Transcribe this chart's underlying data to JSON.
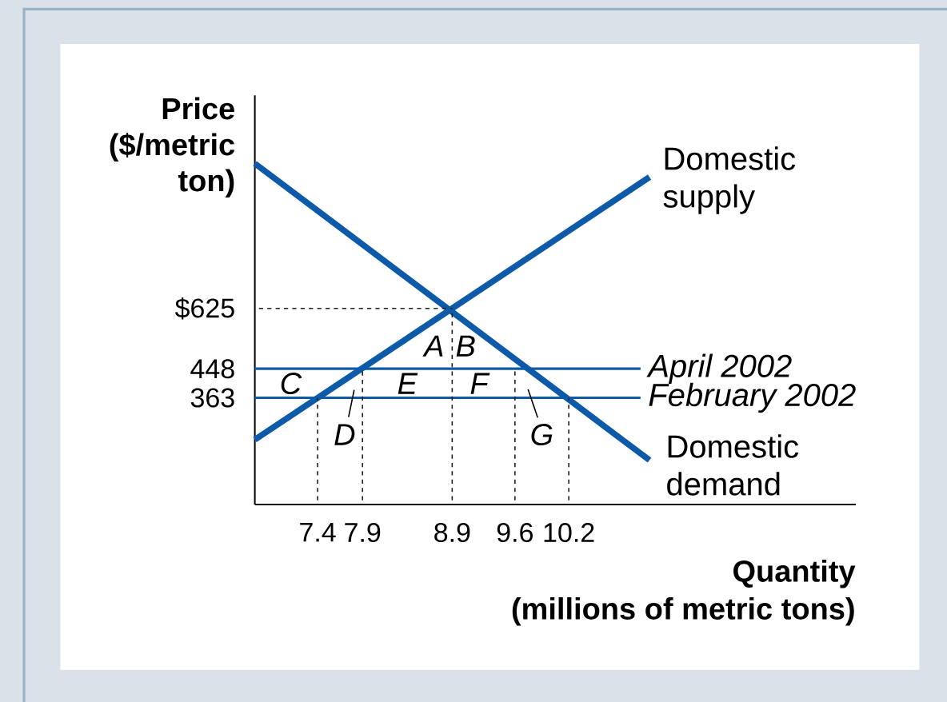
{
  "chart_data": {
    "type": "line",
    "xlabel": "Quantity (millions of metric tons)",
    "ylabel": "Price ($/metric ton)",
    "xlim": [
      6.7,
      13.4
    ],
    "ylim": [
      50,
      1250
    ],
    "xticks": [
      7.4,
      7.9,
      8.9,
      9.6,
      10.2
    ],
    "yticks": [
      363,
      448,
      {
        "value": 625,
        "label": "$625"
      }
    ],
    "series": [
      {
        "name": "Domestic supply",
        "color": "#0d5ba8",
        "x": [
          6.7,
          11.1
        ],
        "values": [
          240,
          1010
        ]
      },
      {
        "name": "Domestic demand",
        "color": "#0d5ba8",
        "x": [
          6.7,
          11.1
        ],
        "values": [
          1050,
          180
        ]
      },
      {
        "name": "April 2002",
        "color": "#0d5ba8",
        "x": [
          6.7,
          11.0
        ],
        "values": [
          448,
          448
        ]
      },
      {
        "name": "February 2002",
        "color": "#0d5ba8",
        "x": [
          6.7,
          11.0
        ],
        "values": [
          363,
          363
        ]
      },
      {
        "color": "#231f20",
        "line_style": "dashed",
        "x": [
          6.7,
          8.9
        ],
        "values": [
          625,
          625
        ]
      },
      {
        "color": "#231f20",
        "line_style": "dashed",
        "x": [
          7.4,
          7.4
        ],
        "values": [
          50,
          363
        ]
      },
      {
        "color": "#231f20",
        "line_style": "dashed",
        "x": [
          7.9,
          7.9
        ],
        "values": [
          50,
          448
        ]
      },
      {
        "color": "#231f20",
        "line_style": "dashed",
        "x": [
          8.9,
          8.9
        ],
        "values": [
          50,
          625
        ]
      },
      {
        "color": "#231f20",
        "line_style": "dashed",
        "x": [
          9.6,
          9.6
        ],
        "values": [
          50,
          448
        ]
      },
      {
        "color": "#231f20",
        "line_style": "dashed",
        "x": [
          10.2,
          10.2
        ],
        "values": [
          50,
          363
        ]
      }
    ],
    "annotations": [
      "A",
      "B",
      "C",
      "D",
      "E",
      "F",
      "G"
    ]
  }
}
